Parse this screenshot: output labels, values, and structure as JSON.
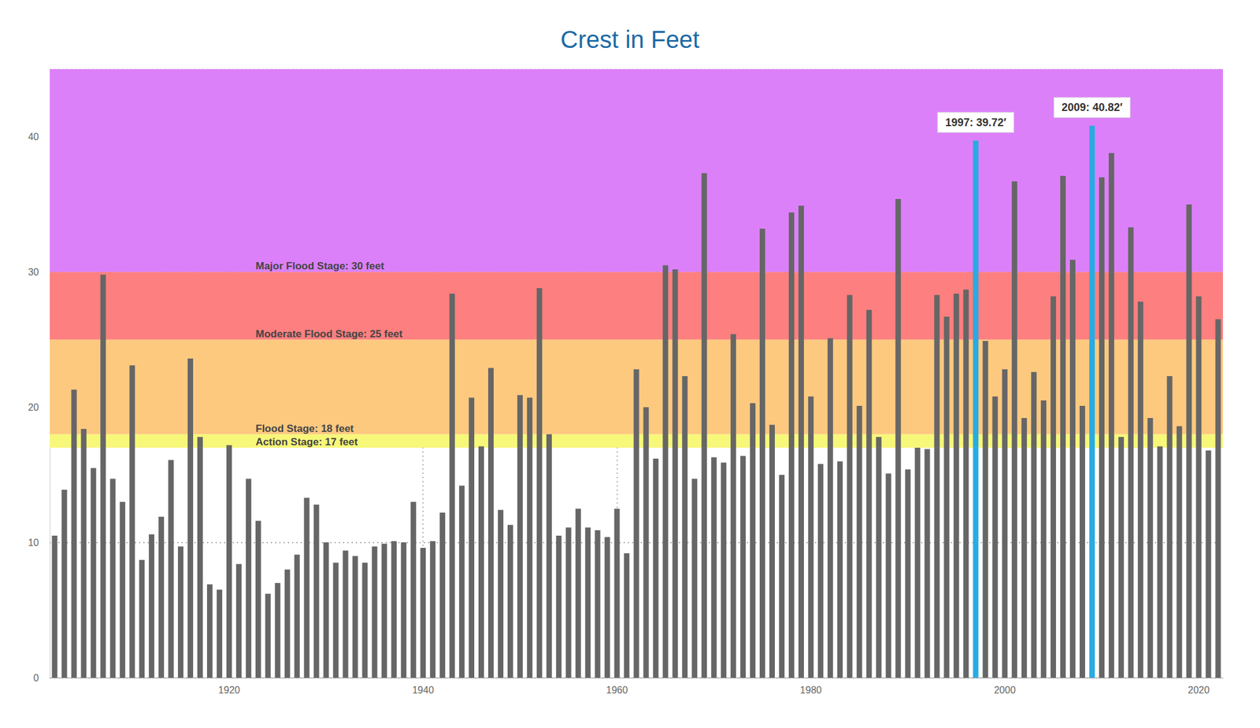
{
  "chart_data": {
    "type": "bar",
    "title": "Crest in Feet",
    "x": [
      1902,
      1903,
      1904,
      1905,
      1906,
      1907,
      1908,
      1909,
      1910,
      1911,
      1912,
      1913,
      1914,
      1915,
      1916,
      1917,
      1918,
      1919,
      1920,
      1921,
      1922,
      1923,
      1924,
      1925,
      1926,
      1927,
      1928,
      1929,
      1930,
      1931,
      1932,
      1933,
      1934,
      1935,
      1936,
      1937,
      1938,
      1939,
      1940,
      1941,
      1942,
      1943,
      1944,
      1945,
      1946,
      1947,
      1948,
      1949,
      1950,
      1951,
      1952,
      1953,
      1954,
      1955,
      1956,
      1957,
      1958,
      1959,
      1960,
      1961,
      1962,
      1963,
      1964,
      1965,
      1966,
      1967,
      1968,
      1969,
      1970,
      1971,
      1972,
      1973,
      1974,
      1975,
      1976,
      1977,
      1978,
      1979,
      1980,
      1981,
      1982,
      1983,
      1984,
      1985,
      1986,
      1987,
      1988,
      1989,
      1990,
      1991,
      1992,
      1993,
      1994,
      1995,
      1996,
      1997,
      1998,
      1999,
      2000,
      2001,
      2002,
      2003,
      2004,
      2005,
      2006,
      2007,
      2008,
      2009,
      2010,
      2011,
      2012,
      2013,
      2014,
      2015,
      2016,
      2017,
      2018,
      2019,
      2020,
      2021,
      2022
    ],
    "values": [
      10.5,
      13.9,
      21.3,
      18.4,
      15.5,
      29.8,
      14.7,
      13.0,
      23.1,
      8.7,
      10.6,
      11.9,
      16.1,
      9.7,
      23.6,
      17.8,
      6.9,
      6.5,
      17.2,
      8.4,
      14.7,
      11.6,
      6.2,
      7.0,
      8.0,
      9.1,
      13.3,
      12.8,
      10.0,
      8.5,
      9.4,
      9.0,
      8.5,
      9.7,
      9.9,
      10.1,
      10.0,
      13.0,
      9.6,
      10.1,
      12.2,
      28.4,
      14.2,
      20.7,
      17.1,
      22.9,
      12.4,
      11.3,
      20.9,
      20.7,
      28.8,
      18.0,
      10.5,
      11.1,
      12.5,
      11.1,
      10.9,
      10.4,
      12.5,
      9.2,
      22.8,
      20.0,
      16.2,
      30.5,
      30.2,
      22.3,
      14.7,
      37.3,
      16.3,
      15.9,
      25.4,
      16.4,
      20.3,
      33.2,
      18.7,
      15.0,
      34.4,
      34.9,
      20.8,
      15.8,
      25.1,
      16.0,
      28.3,
      20.1,
      27.2,
      17.8,
      15.1,
      35.4,
      15.4,
      17.0,
      16.9,
      28.3,
      26.7,
      28.4,
      28.7,
      39.72,
      24.9,
      20.8,
      22.8,
      36.7,
      19.2,
      22.6,
      20.5,
      28.2,
      37.1,
      30.9,
      20.1,
      40.82,
      37.0,
      38.8,
      17.8,
      33.3,
      27.8,
      19.2,
      17.1,
      22.3,
      18.6,
      35.0,
      28.2,
      16.8,
      26.5
    ],
    "colors": [
      "#666666",
      "#666666",
      "#666666",
      "#666666",
      "#666666",
      "#666666",
      "#666666",
      "#666666",
      "#666666",
      "#666666",
      "#666666",
      "#666666",
      "#666666",
      "#666666",
      "#666666",
      "#666666",
      "#666666",
      "#666666",
      "#666666",
      "#666666",
      "#666666",
      "#666666",
      "#666666",
      "#666666",
      "#666666",
      "#666666",
      "#666666",
      "#666666",
      "#666666",
      "#666666",
      "#666666",
      "#666666",
      "#666666",
      "#666666",
      "#666666",
      "#666666",
      "#666666",
      "#666666",
      "#666666",
      "#666666",
      "#666666",
      "#666666",
      "#666666",
      "#666666",
      "#666666",
      "#666666",
      "#666666",
      "#666666",
      "#666666",
      "#666666",
      "#666666",
      "#666666",
      "#666666",
      "#666666",
      "#666666",
      "#666666",
      "#666666",
      "#666666",
      "#666666",
      "#666666",
      "#666666",
      "#666666",
      "#666666",
      "#666666",
      "#666666",
      "#666666",
      "#666666",
      "#666666",
      "#666666",
      "#666666",
      "#666666",
      "#666666",
      "#666666",
      "#666666",
      "#666666",
      "#666666",
      "#666666",
      "#666666",
      "#666666",
      "#666666",
      "#666666",
      "#666666",
      "#666666",
      "#666666",
      "#666666",
      "#666666",
      "#666666",
      "#666666",
      "#666666",
      "#666666",
      "#666666",
      "#666666",
      "#666666",
      "#666666",
      "#666666",
      "#29abe2",
      "#666666",
      "#666666",
      "#666666",
      "#666666",
      "#666666",
      "#666666",
      "#666666",
      "#666666",
      "#666666",
      "#666666",
      "#666666",
      "#29abe2",
      "#666666",
      "#666666",
      "#666666",
      "#666666",
      "#666666",
      "#666666",
      "#666666",
      "#666666",
      "#666666",
      "#666666",
      "#666666",
      "#666666",
      "#666666"
    ],
    "xlim": [
      1901.5,
      2022.5
    ],
    "xticks": [
      1920,
      1940,
      1960,
      1980,
      2000,
      2020
    ],
    "ylim": [
      0,
      45
    ],
    "yticks": [
      0,
      10,
      20,
      30,
      40
    ],
    "grid": true,
    "stages": [
      {
        "value": 17,
        "label": "Action Stage: 17 feet",
        "color": "#f7f77a"
      },
      {
        "value": 18,
        "label": "Flood Stage: 18 feet",
        "color": "#fdc97f"
      },
      {
        "value": 25,
        "label": "Moderate Flood Stage: 25 feet",
        "color": "#fd7f7f"
      },
      {
        "value": 30,
        "label": "Major Flood Stage: 30 feet",
        "color": "#dc80f9"
      }
    ],
    "annotations": [
      {
        "x": 1997,
        "label": "1997: 39.72′"
      },
      {
        "x": 2009,
        "label": "2009: 40.82′"
      }
    ]
  }
}
